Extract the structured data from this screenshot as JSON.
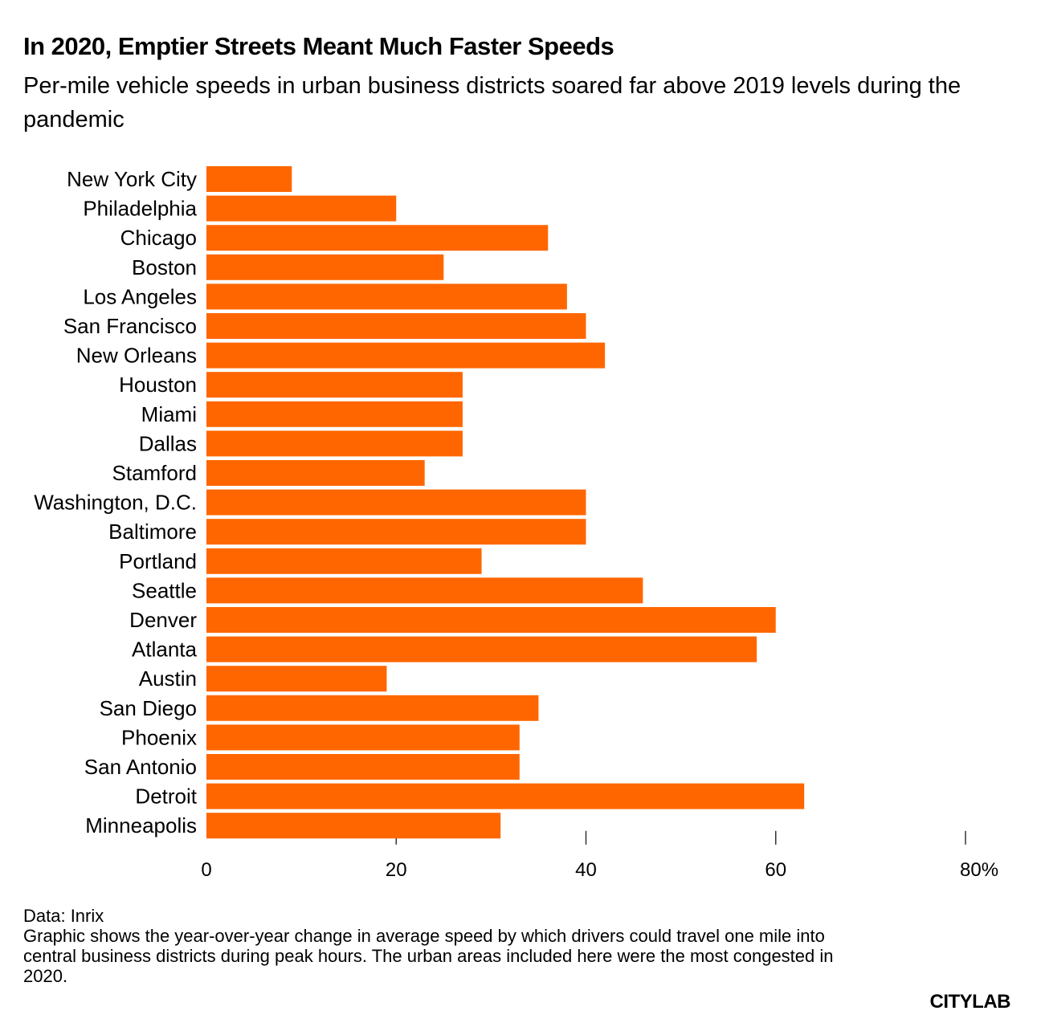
{
  "chart_data": {
    "type": "bar",
    "orientation": "horizontal",
    "title": "In 2020, Emptier Streets Meant Much Faster Speeds",
    "subtitle": "Per-mile vehicle speeds in urban business districts soared far above 2019 levels during the pandemic",
    "xlabel": "",
    "ylabel": "",
    "xlim": [
      0,
      80
    ],
    "x_ticks": [
      0,
      20,
      40,
      60,
      80
    ],
    "x_tick_labels": [
      "0",
      "20",
      "40",
      "60",
      "80%"
    ],
    "grid": false,
    "bar_color": "#ff6600",
    "categories": [
      "New York City",
      "Philadelphia",
      "Chicago",
      "Boston",
      "Los Angeles",
      "San Francisco",
      "New Orleans",
      "Houston",
      "Miami",
      "Dallas",
      "Stamford",
      "Washington, D.C.",
      "Baltimore",
      "Portland",
      "Seattle",
      "Denver",
      "Atlanta",
      "Austin",
      "San Diego",
      "Phoenix",
      "San Antonio",
      "Detroit",
      "Minneapolis"
    ],
    "values": [
      9,
      20,
      36,
      25,
      38,
      40,
      42,
      27,
      27,
      27,
      23,
      40,
      40,
      29,
      46,
      60,
      58,
      19,
      35,
      33,
      33,
      63,
      31
    ]
  },
  "footer": {
    "source": "Data: Inrix",
    "note": "Graphic shows the year-over-year change in average speed by which drivers could travel one mile into central business districts during peak hours. The urban areas included here were the most congested in 2020."
  },
  "brand": "CITYLAB"
}
